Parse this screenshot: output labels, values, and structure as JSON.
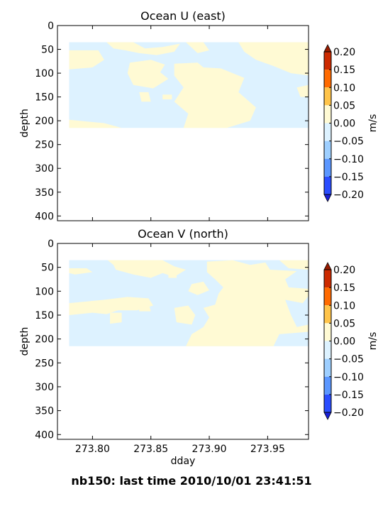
{
  "footer": "nb150: last time 2010/10/01 23:41:51",
  "xlabel": "dday",
  "x_ticks": [
    "273.80",
    "273.85",
    "273.90",
    "273.95"
  ],
  "y_ticks": [
    "0",
    "50",
    "100",
    "150",
    "200",
    "250",
    "300",
    "350",
    "400"
  ],
  "colorbar": {
    "unit": "m/s",
    "levels": [
      "0.20",
      "0.15",
      "0.10",
      "0.05",
      "0.00",
      "−0.05",
      "−0.10",
      "−0.15",
      "−0.20"
    ],
    "colors": [
      "#cc2a00",
      "#ff6a00",
      "#ffc44a",
      "#fffad4",
      "#ddf2ff",
      "#9ecfff",
      "#5b97ff",
      "#2a4dff"
    ],
    "over_color": "#991c00",
    "under_color": "#1a1fd8"
  },
  "chart_data": [
    {
      "type": "heatmap",
      "title": "Ocean U (east)",
      "ylabel": "depth",
      "xlim": [
        273.77,
        273.985
      ],
      "ylim": [
        410,
        0
      ],
      "data_extent": {
        "x": [
          273.78,
          273.985
        ],
        "depth": [
          35,
          215
        ]
      },
      "levels": [
        -0.05,
        0.0,
        0.05
      ],
      "background_level_color": "#ddf2ff",
      "patches": [
        {
          "level": "0.00 to 0.05",
          "points": [
            [
              273.812,
              35
            ],
            [
              273.835,
              35
            ],
            [
              273.845,
              48
            ],
            [
              273.86,
              45
            ],
            [
              273.875,
              38
            ],
            [
              273.87,
              55
            ],
            [
              273.855,
              62
            ],
            [
              273.84,
              58
            ],
            [
              273.828,
              52
            ],
            [
              273.818,
              48
            ]
          ]
        },
        {
          "level": "0.00 to 0.05",
          "points": [
            [
              273.78,
              52
            ],
            [
              273.805,
              52
            ],
            [
              273.81,
              72
            ],
            [
              273.8,
              88
            ],
            [
              273.78,
              92
            ]
          ]
        },
        {
          "level": "0.00 to 0.05",
          "points": [
            [
              273.832,
              78
            ],
            [
              273.85,
              72
            ],
            [
              273.862,
              82
            ],
            [
              273.858,
              98
            ],
            [
              273.865,
              112
            ],
            [
              273.852,
              132
            ],
            [
              273.835,
              125
            ],
            [
              273.83,
              100
            ]
          ]
        },
        {
          "level": "0.00 to 0.05",
          "points": [
            [
              273.88,
              35
            ],
            [
              273.895,
              35
            ],
            [
              273.9,
              52
            ],
            [
              273.89,
              58
            ]
          ]
        },
        {
          "level": "0.00 to 0.05",
          "points": [
            [
              273.87,
              80
            ],
            [
              273.89,
              78
            ],
            [
              273.895,
              88
            ],
            [
              273.91,
              90
            ],
            [
              273.93,
              110
            ],
            [
              273.925,
              140
            ],
            [
              273.94,
              172
            ],
            [
              273.935,
              200
            ],
            [
              273.915,
              215
            ],
            [
              273.878,
              215
            ],
            [
              273.882,
              185
            ],
            [
              273.87,
              160
            ],
            [
              273.878,
              130
            ],
            [
              273.87,
              105
            ]
          ]
        },
        {
          "level": "0.00 to 0.05",
          "points": [
            [
              273.925,
              35
            ],
            [
              273.985,
              35
            ],
            [
              273.985,
              105
            ],
            [
              273.97,
              100
            ],
            [
              273.955,
              85
            ],
            [
              273.94,
              72
            ],
            [
              273.93,
              55
            ]
          ]
        },
        {
          "level": "0.00 to 0.05",
          "points": [
            [
              273.975,
              130
            ],
            [
              273.985,
              125
            ],
            [
              273.985,
              150
            ],
            [
              273.978,
              150
            ]
          ]
        },
        {
          "level": "0.00 to 0.05",
          "points": [
            [
              273.78,
              198
            ],
            [
              273.81,
              205
            ],
            [
              273.825,
              215
            ],
            [
              273.78,
              215
            ]
          ]
        },
        {
          "level": "0.00 to 0.05",
          "points": [
            [
              273.84,
              140
            ],
            [
              273.848,
              140
            ],
            [
              273.85,
              160
            ],
            [
              273.842,
              160
            ]
          ]
        },
        {
          "level": "0.00 to 0.05",
          "points": [
            [
              273.86,
              145
            ],
            [
              273.868,
              145
            ],
            [
              273.868,
              155
            ],
            [
              273.86,
              155
            ]
          ]
        }
      ]
    },
    {
      "type": "heatmap",
      "title": "Ocean V (north)",
      "ylabel": "depth",
      "xlim": [
        273.77,
        273.985
      ],
      "ylim": [
        410,
        0
      ],
      "data_extent": {
        "x": [
          273.78,
          273.985
        ],
        "depth": [
          35,
          215
        ]
      },
      "levels": [
        -0.05,
        0.0,
        0.05
      ],
      "background_level_color": "#ddf2ff",
      "patches": [
        {
          "level": "0.00 to 0.05",
          "points": [
            [
              273.813,
              35
            ],
            [
              273.86,
              35
            ],
            [
              273.87,
              48
            ],
            [
              273.88,
              55
            ],
            [
              273.87,
              70
            ],
            [
              273.86,
              62
            ],
            [
              273.85,
              72
            ],
            [
              273.835,
              65
            ],
            [
              273.82,
              55
            ],
            [
              273.818,
              45
            ]
          ]
        },
        {
          "level": "0.00 to 0.05",
          "points": [
            [
              273.78,
              52
            ],
            [
              273.795,
              52
            ],
            [
              273.8,
              60
            ],
            [
              273.785,
              65
            ],
            [
              273.78,
              62
            ]
          ]
        },
        {
          "level": "0.00 to 0.05",
          "points": [
            [
              273.78,
              125
            ],
            [
              273.81,
              118
            ],
            [
              273.83,
              112
            ],
            [
              273.848,
              115
            ],
            [
              273.852,
              130
            ],
            [
              273.838,
              140
            ],
            [
              273.822,
              140
            ],
            [
              273.812,
              148
            ],
            [
              273.8,
              145
            ],
            [
              273.78,
              150
            ]
          ]
        },
        {
          "level": "0.00 to 0.05",
          "points": [
            [
              273.815,
              145
            ],
            [
              273.825,
              145
            ],
            [
              273.825,
              165
            ],
            [
              273.815,
              168
            ]
          ]
        },
        {
          "level": "0.00 to 0.05",
          "points": [
            [
              273.84,
              125
            ],
            [
              273.848,
              125
            ],
            [
              273.85,
              142
            ],
            [
              273.84,
              142
            ]
          ]
        },
        {
          "level": "0.00 to 0.05",
          "points": [
            [
              273.865,
              55
            ],
            [
              273.872,
              55
            ],
            [
              273.872,
              72
            ],
            [
              273.865,
              72
            ]
          ]
        },
        {
          "level": "0.00 to 0.05",
          "points": [
            [
              273.87,
              135
            ],
            [
              273.882,
              130
            ],
            [
              273.888,
              150
            ],
            [
              273.885,
              170
            ],
            [
              273.872,
              165
            ]
          ]
        },
        {
          "level": "0.00 to 0.05",
          "points": [
            [
              273.898,
              38
            ],
            [
              273.92,
              35
            ],
            [
              273.935,
              45
            ],
            [
              273.948,
              40
            ],
            [
              273.952,
              55
            ],
            [
              273.975,
              58
            ],
            [
              273.965,
              75
            ],
            [
              273.968,
              92
            ],
            [
              273.985,
              95
            ],
            [
              273.985,
              110
            ],
            [
              273.98,
              125
            ],
            [
              273.965,
              118
            ],
            [
              273.97,
              150
            ],
            [
              273.975,
              175
            ],
            [
              273.985,
              170
            ],
            [
              273.985,
              185
            ],
            [
              273.96,
              190
            ],
            [
              273.955,
              215
            ],
            [
              273.88,
              215
            ],
            [
              273.885,
              190
            ],
            [
              273.895,
              175
            ],
            [
              273.9,
              155
            ],
            [
              273.895,
              135
            ],
            [
              273.905,
              128
            ],
            [
              273.908,
              105
            ],
            [
              273.912,
              92
            ],
            [
              273.905,
              75
            ],
            [
              273.898,
              60
            ]
          ]
        },
        {
          "level": "0.00 to 0.05",
          "points": [
            [
              273.885,
              85
            ],
            [
              273.895,
              80
            ],
            [
              273.9,
              98
            ],
            [
              273.89,
              108
            ],
            [
              273.882,
              100
            ]
          ]
        },
        {
          "level": "0.00 to 0.05",
          "points": [
            [
              273.96,
              35
            ],
            [
              273.985,
              35
            ],
            [
              273.985,
              55
            ],
            [
              273.968,
              52
            ]
          ]
        }
      ]
    }
  ]
}
